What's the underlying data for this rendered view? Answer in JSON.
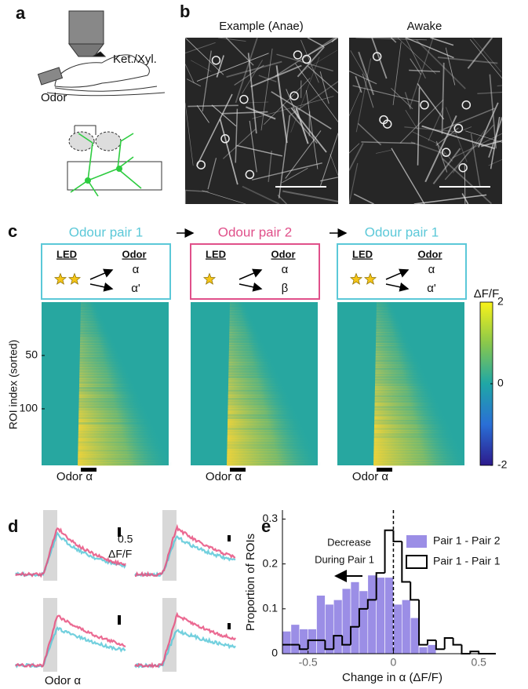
{
  "panel_labels": [
    "a",
    "b",
    "c",
    "d",
    "e"
  ],
  "panel_a": {
    "anesthesia": "Ket./Xyl.",
    "stimulus": "Odor"
  },
  "panel_b": {
    "titles": [
      "Example (Anae)",
      "Awake"
    ]
  },
  "panel_c": {
    "conditions": [
      {
        "title": "Odour pair 1",
        "led": "LED",
        "odor": "Odor",
        "odors": [
          "α",
          "α'"
        ],
        "stars": 2
      },
      {
        "title": "Odour pair 2",
        "led": "LED",
        "odor": "Odor",
        "odors": [
          "α",
          "β"
        ],
        "stars": 1
      },
      {
        "title": "Odour pair 1",
        "led": "LED",
        "odor": "Odor",
        "odors": [
          "α",
          "α'"
        ],
        "stars": 2
      }
    ],
    "y_label": "ROI index (sorted)",
    "roi_lim": [
      0,
      153
    ],
    "roi_ticks": [
      50,
      100
    ],
    "x_label": "Odor α",
    "colorbar": {
      "label": "ΔF/F",
      "lim": [
        -2,
        2
      ],
      "ticks": [
        2,
        0,
        -2
      ]
    }
  },
  "panel_d": {
    "scale_value": 0.5,
    "scale_unit": "ΔF/F",
    "x_label": "Odor α"
  },
  "panel_e": {
    "type": "histogram",
    "y_label": "Proportion of ROIs",
    "x_label": "Change in α  (ΔF/F)",
    "annotation": [
      "Decrease",
      "During Pair 1"
    ],
    "bins": [
      -0.65,
      -0.6,
      -0.55,
      -0.5,
      -0.45,
      -0.4,
      -0.35,
      -0.3,
      -0.25,
      -0.2,
      -0.15,
      -0.1,
      -0.05,
      0,
      0.05,
      0.1,
      0.15,
      0.2,
      0.25,
      0.3,
      0.35,
      0.4,
      0.45,
      0.5,
      0.55,
      0.6
    ],
    "series": [
      {
        "name": "Pair 1 - Pair 2",
        "color": "#9b8ee6",
        "values": [
          0.05,
          0.065,
          0.055,
          0.055,
          0.13,
          0.11,
          0.12,
          0.145,
          0.16,
          0.14,
          0.175,
          0.17,
          0.17,
          0.11,
          0.12,
          0.08,
          0.015,
          0.02,
          0,
          0,
          0,
          0,
          0,
          0,
          0
        ]
      },
      {
        "name": "Pair 1 - Pair 1",
        "color": "#000000",
        "values": [
          0.02,
          0.02,
          0.01,
          0.03,
          0.03,
          0.01,
          0.04,
          0.02,
          0.06,
          0.1,
          0.12,
          0.18,
          0.275,
          0.25,
          0.16,
          0.12,
          0.02,
          0.03,
          0.01,
          0.035,
          0.02,
          0,
          0.005,
          0,
          0
        ]
      }
    ],
    "xlim": [
      -0.65,
      0.6
    ],
    "ylim": [
      0,
      0.32
    ],
    "xticks": [
      -0.5,
      0,
      0.5
    ],
    "yticks": [
      0,
      0.1,
      0.2,
      0.3
    ]
  }
}
